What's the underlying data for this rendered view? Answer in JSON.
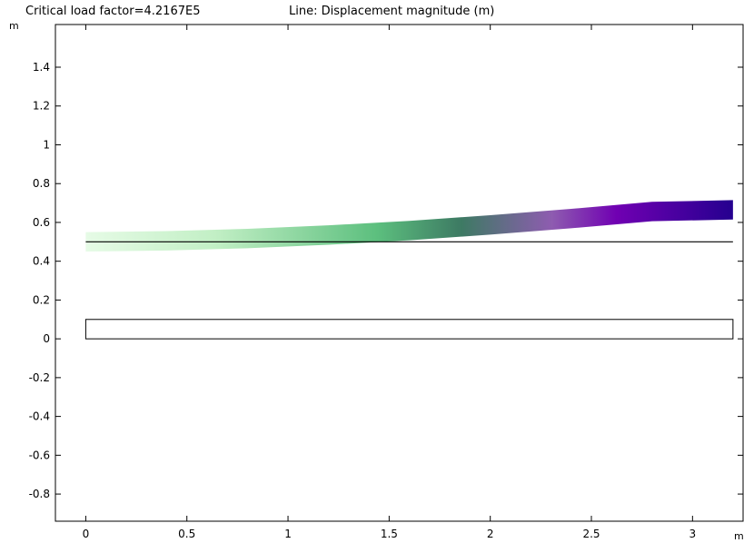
{
  "header": {
    "title_left": "Critical load factor=4.2167E5",
    "title_right": "Line: Displacement magnitude (m)"
  },
  "chart_data": {
    "type": "line",
    "title": "Critical load factor=4.2167E5",
    "subtitle": "Line: Displacement magnitude (m)",
    "xunit": "m",
    "yunit": "m",
    "xlim": [
      -0.15,
      3.25
    ],
    "ylim": [
      -0.94,
      1.62
    ],
    "xticks": [
      0,
      0.5,
      1,
      1.5,
      2,
      2.5,
      3
    ],
    "xtick_labels": [
      "0",
      "0.5",
      "1",
      "1.5",
      "2",
      "2.5",
      "3"
    ],
    "yticks": [
      -0.8,
      -0.6,
      -0.4,
      -0.2,
      0,
      0.2,
      0.4,
      0.6,
      0.8,
      1,
      1.2,
      1.4
    ],
    "ytick_labels": [
      "-0.8",
      "-0.6",
      "-0.4",
      "-0.2",
      "0",
      "0.2",
      "0.4",
      "0.6",
      "0.8",
      "1",
      "1.2",
      "1.4"
    ],
    "grid": false,
    "undeformed_line": {
      "x": [
        0,
        3.2
      ],
      "y": [
        0.5,
        0.5
      ]
    },
    "geometry_rect": {
      "x": [
        0,
        3.2
      ],
      "y": [
        0,
        0.1
      ]
    },
    "deformed_shape": {
      "x": [
        0,
        0.4,
        0.8,
        1.2,
        1.6,
        2.0,
        2.4,
        2.8,
        3.2
      ],
      "y": [
        0.5,
        0.505,
        0.517,
        0.535,
        0.558,
        0.587,
        0.62,
        0.656,
        0.665
      ]
    },
    "colormap_stops": [
      "#e6fbe6",
      "#c2efc5",
      "#5cbf7e",
      "#3d7a63",
      "#8e5cb0",
      "#7000b2",
      "#25008f"
    ]
  }
}
